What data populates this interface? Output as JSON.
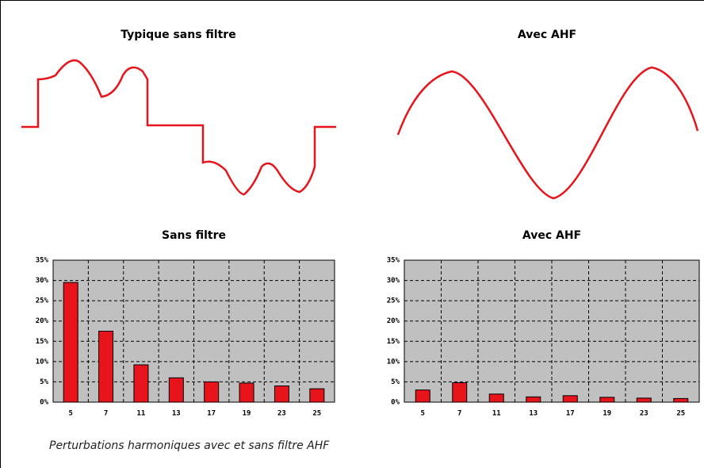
{
  "waveforms": [
    {
      "title": "Typique sans filtre"
    },
    {
      "title": "Avec AHF"
    }
  ],
  "chart_data": [
    {
      "type": "bar",
      "title": "Sans filtre",
      "categories": [
        "5",
        "7",
        "11",
        "13",
        "17",
        "19",
        "23",
        "25"
      ],
      "values": [
        29.5,
        17.5,
        9.2,
        6,
        5,
        4.7,
        4,
        3.3
      ],
      "color": "#e8141b",
      "ylim": [
        0,
        35
      ],
      "yticks": [
        {
          "value": 0,
          "label": "0%"
        },
        {
          "value": 5,
          "label": "5%"
        },
        {
          "value": 10,
          "label": "10%"
        },
        {
          "value": 15,
          "label": "15%"
        },
        {
          "value": 20,
          "label": "20%"
        },
        {
          "value": 25,
          "label": "25%"
        },
        {
          "value": 30,
          "label": "30%"
        },
        {
          "value": 35,
          "label": "35%"
        }
      ],
      "grid": true
    },
    {
      "type": "bar",
      "title": "Avec AHF",
      "categories": [
        "5",
        "7",
        "11",
        "13",
        "17",
        "19",
        "23",
        "25"
      ],
      "values": [
        3,
        4.8,
        2,
        1.3,
        1.6,
        1.2,
        1,
        0.9
      ],
      "color": "#e8141b",
      "ylim": [
        0,
        35
      ],
      "yticks": [
        {
          "value": 0,
          "label": "0%"
        },
        {
          "value": 5,
          "label": "5%"
        },
        {
          "value": 10,
          "label": "10%"
        },
        {
          "value": 15,
          "label": "15%"
        },
        {
          "value": 20,
          "label": "20%"
        },
        {
          "value": 25,
          "label": "25%"
        },
        {
          "value": 30,
          "label": "30%"
        },
        {
          "value": 35,
          "label": "35%"
        }
      ],
      "grid": true
    }
  ],
  "caption": "Perturbations harmoniques avec et sans filtre AHF"
}
